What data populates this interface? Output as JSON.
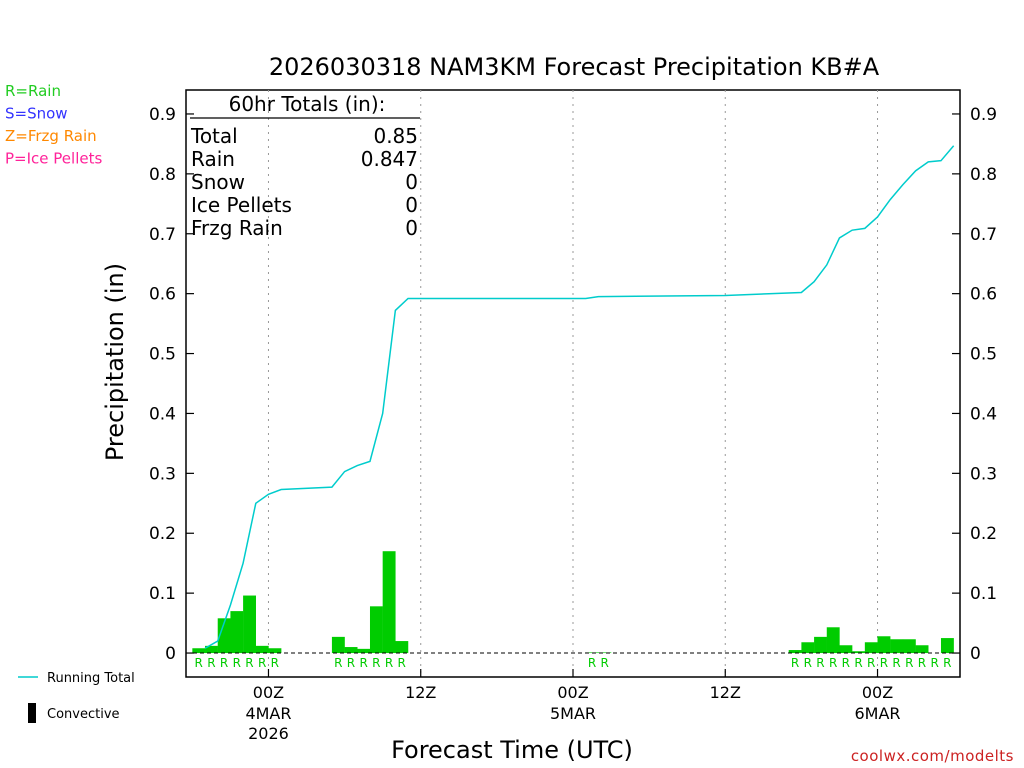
{
  "chart_data": {
    "type": "bar",
    "title": "2026030318 NAM3KM Forecast Precipitation KB#A",
    "ylabel": "Precipitation (in)",
    "xlabel": "Forecast Time (UTC)",
    "ylim": [
      -0.04,
      0.94
    ],
    "xlim_hours": [
      -6.5,
      54.5
    ],
    "y_ticks": [
      "0",
      "0.1",
      "0.2",
      "0.3",
      "0.4",
      "0.5",
      "0.6",
      "0.7",
      "0.8",
      "0.9"
    ],
    "y_tick_values": [
      0,
      0.1,
      0.2,
      0.3,
      0.4,
      0.5,
      0.6,
      0.7,
      0.8,
      0.9
    ],
    "x_ticks": [
      {
        "hour": 0,
        "label": "00Z",
        "sub1": "4MAR",
        "sub2": "2026"
      },
      {
        "hour": 12,
        "label": "12Z",
        "sub1": "",
        "sub2": ""
      },
      {
        "hour": 24,
        "label": "00Z",
        "sub1": "5MAR",
        "sub2": ""
      },
      {
        "hour": 36,
        "label": "12Z",
        "sub1": "",
        "sub2": ""
      },
      {
        "hour": 48,
        "label": "00Z",
        "sub1": "6MAR",
        "sub2": ""
      }
    ],
    "grid": "vertical dotted at 6-hourly ticks",
    "legend_types": [
      {
        "label": "R=Rain",
        "color": "#22cc22"
      },
      {
        "label": "S=Snow",
        "color": "#3333ff"
      },
      {
        "label": "Z=Frzg Rain",
        "color": "#ff8800"
      },
      {
        "label": "P=Ice Pellets",
        "color": "#ff2299"
      }
    ],
    "legend_lines": [
      {
        "label": "Running Total",
        "color": "#00cccc"
      },
      {
        "label": "Convective",
        "color": "#000000"
      }
    ],
    "bar_color": "#00cc00",
    "line_color": "#00cccc",
    "precip_type_color": "#00cc00",
    "hourly_bars": {
      "hours": [
        -5,
        -4,
        -3,
        -2,
        -1,
        0,
        1,
        6,
        7,
        8,
        9,
        10,
        11,
        26,
        27,
        42,
        43,
        44,
        45,
        46,
        47,
        48,
        49,
        50,
        51,
        52,
        53,
        54
      ],
      "values": [
        0.008,
        0.012,
        0.058,
        0.07,
        0.096,
        0.012,
        0.008,
        0.027,
        0.01,
        0.007,
        0.078,
        0.17,
        0.02,
        0.001,
        0.001,
        0.005,
        0.018,
        0.027,
        0.043,
        0.013,
        0.003,
        0.018,
        0.028,
        0.023,
        0.023,
        0.013,
        0,
        0.025
      ],
      "types": [
        "R",
        "R",
        "R",
        "R",
        "R",
        "R",
        "R",
        "R",
        "R",
        "R",
        "R",
        "R",
        "R",
        "R",
        "R",
        "R",
        "R",
        "R",
        "R",
        "R",
        "R",
        "R",
        "R",
        "R",
        "R",
        "R",
        "R",
        "R"
      ]
    },
    "running_total": {
      "hours": [
        -5,
        -4,
        -3,
        -2,
        -1,
        0,
        1,
        5,
        6,
        7,
        8,
        9,
        10,
        11,
        25,
        26,
        36,
        42,
        43,
        44,
        45,
        46,
        47,
        48,
        49,
        50,
        51,
        52,
        53,
        54
      ],
      "values": [
        0.008,
        0.02,
        0.08,
        0.15,
        0.25,
        0.265,
        0.273,
        0.277,
        0.303,
        0.313,
        0.32,
        0.4,
        0.572,
        0.592,
        0.592,
        0.595,
        0.597,
        0.602,
        0.62,
        0.648,
        0.693,
        0.706,
        0.709,
        0.728,
        0.757,
        0.782,
        0.805,
        0.82,
        0.822,
        0.847
      ]
    },
    "totals": {
      "header": "60hr Totals (in):",
      "rows": [
        {
          "label": "Total",
          "value": "0.85"
        },
        {
          "label": "Rain",
          "value": "0.847"
        },
        {
          "label": "Snow",
          "value": "0"
        },
        {
          "label": "Ice Pellets",
          "value": "0"
        },
        {
          "label": "Frzg Rain",
          "value": "0"
        }
      ]
    },
    "credit": "coolwx.com/modelts"
  }
}
